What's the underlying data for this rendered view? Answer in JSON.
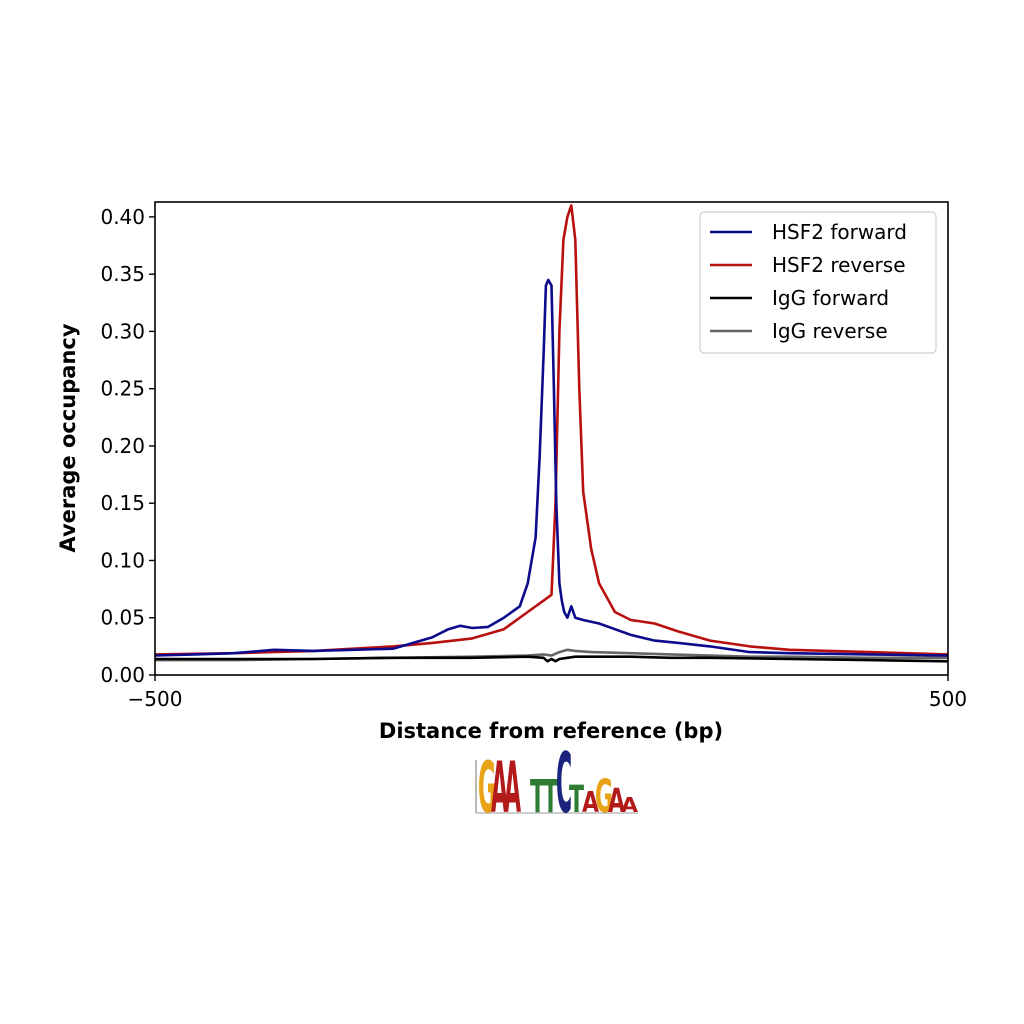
{
  "chart_data": {
    "type": "line",
    "title": "",
    "xlabel": "Distance from reference (bp)",
    "ylabel": "Average occupancy",
    "xlim": [
      -500,
      500
    ],
    "ylim": [
      0,
      0.413
    ],
    "x_ticks": [
      -500,
      500
    ],
    "x_tick_labels": [
      "−500",
      "500"
    ],
    "y_ticks": [
      0.0,
      0.05,
      0.1,
      0.15,
      0.2,
      0.25,
      0.3,
      0.35,
      0.4
    ],
    "y_tick_labels": [
      "0.00",
      "0.05",
      "0.10",
      "0.15",
      "0.20",
      "0.25",
      "0.30",
      "0.35",
      "0.40"
    ],
    "grid": false,
    "legend_position": "top-right",
    "series": [
      {
        "name": "HSF2 forward",
        "color": "#0b0b8c",
        "x": [
          -500,
          -450,
          -400,
          -350,
          -300,
          -250,
          -200,
          -150,
          -130,
          -115,
          -100,
          -80,
          -60,
          -40,
          -30,
          -20,
          -15,
          -10,
          -7,
          -4,
          0,
          3,
          6,
          10,
          13,
          16,
          20,
          25,
          30,
          40,
          60,
          80,
          100,
          130,
          160,
          200,
          250,
          300,
          400,
          500
        ],
        "y": [
          0.017,
          0.018,
          0.019,
          0.022,
          0.021,
          0.022,
          0.023,
          0.033,
          0.04,
          0.043,
          0.041,
          0.042,
          0.05,
          0.06,
          0.08,
          0.12,
          0.19,
          0.28,
          0.34,
          0.345,
          0.34,
          0.25,
          0.15,
          0.08,
          0.065,
          0.055,
          0.05,
          0.06,
          0.05,
          0.048,
          0.045,
          0.04,
          0.035,
          0.03,
          0.028,
          0.025,
          0.02,
          0.019,
          0.018,
          0.017
        ]
      },
      {
        "name": "HSF2 reverse",
        "color": "#b80f0f",
        "x": [
          -500,
          -400,
          -300,
          -250,
          -200,
          -150,
          -100,
          -60,
          -30,
          -10,
          0,
          5,
          10,
          15,
          20,
          25,
          30,
          35,
          40,
          50,
          60,
          80,
          100,
          130,
          160,
          200,
          250,
          300,
          400,
          500
        ],
        "y": [
          0.018,
          0.019,
          0.021,
          0.023,
          0.025,
          0.028,
          0.032,
          0.04,
          0.055,
          0.065,
          0.07,
          0.15,
          0.3,
          0.38,
          0.4,
          0.41,
          0.38,
          0.25,
          0.16,
          0.11,
          0.08,
          0.055,
          0.048,
          0.045,
          0.038,
          0.03,
          0.025,
          0.022,
          0.02,
          0.018
        ]
      },
      {
        "name": "IgG forward",
        "color": "#000000",
        "x": [
          -500,
          -400,
          -300,
          -200,
          -100,
          -30,
          -10,
          -5,
          0,
          5,
          10,
          20,
          30,
          50,
          100,
          150,
          200,
          300,
          400,
          500
        ],
        "y": [
          0.014,
          0.014,
          0.014,
          0.015,
          0.015,
          0.016,
          0.015,
          0.012,
          0.014,
          0.012,
          0.014,
          0.015,
          0.016,
          0.016,
          0.016,
          0.015,
          0.015,
          0.014,
          0.013,
          0.012
        ]
      },
      {
        "name": "IgG reverse",
        "color": "#666666",
        "x": [
          -500,
          -400,
          -300,
          -200,
          -100,
          -30,
          -10,
          0,
          10,
          20,
          30,
          50,
          100,
          150,
          200,
          250,
          300,
          400,
          500
        ],
        "y": [
          0.013,
          0.013,
          0.014,
          0.015,
          0.016,
          0.017,
          0.018,
          0.017,
          0.02,
          0.022,
          0.021,
          0.02,
          0.019,
          0.018,
          0.017,
          0.016,
          0.016,
          0.015,
          0.015
        ]
      }
    ]
  },
  "motif_logo": {
    "letters": [
      {
        "char": "G",
        "color": "#e8a317",
        "height": 0.85
      },
      {
        "char": "A",
        "color": "#b31b1b",
        "height": 0.85
      },
      {
        "char": "A",
        "color": "#b31b1b",
        "height": 0.85
      },
      {
        "char": "",
        "color": "#ffffff",
        "height": 0.0
      },
      {
        "char": "T",
        "color": "#2e7d32",
        "height": 0.55
      },
      {
        "char": "T",
        "color": "#2e7d32",
        "height": 0.55
      },
      {
        "char": "C",
        "color": "#1a237e",
        "height": 1.0
      },
      {
        "char": "T",
        "color": "#2e7d32",
        "height": 0.45
      },
      {
        "char": "A",
        "color": "#b31b1b",
        "height": 0.35
      },
      {
        "char": "G",
        "color": "#e8a317",
        "height": 0.55
      },
      {
        "char": "A",
        "color": "#b31b1b",
        "height": 0.4
      },
      {
        "char": "A",
        "color": "#b31b1b",
        "height": 0.25
      }
    ]
  }
}
